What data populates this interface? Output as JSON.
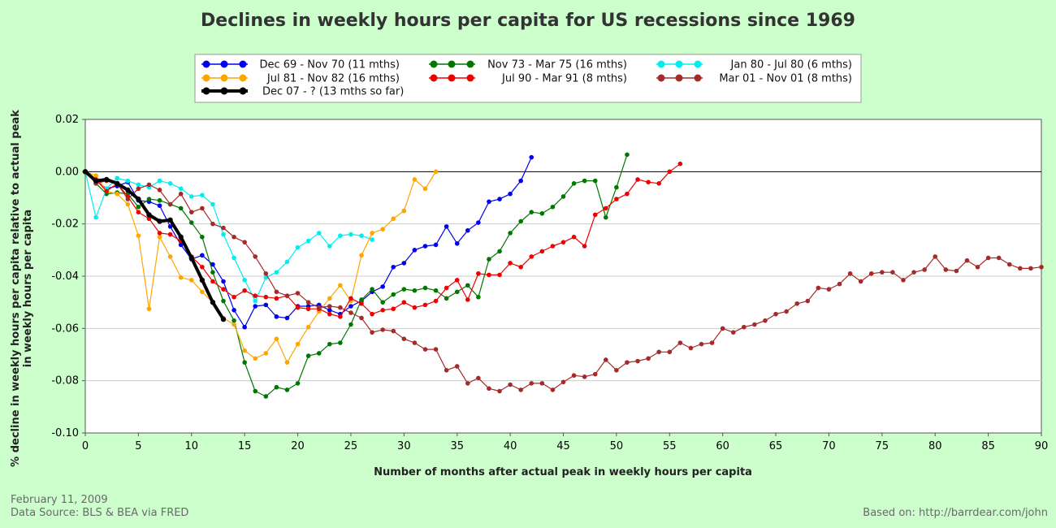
{
  "chart_data": {
    "type": "line",
    "title": "Declines in weekly hours per capita for US recessions since 1969",
    "xlabel": "Number of months after actual peak in weekly hours per capita",
    "ylabel": [
      "% decline in weekly hours per capita relative to actual peak",
      "in weekly hours per capita"
    ],
    "xlim": [
      0,
      90
    ],
    "ylim": [
      -0.1,
      0.02
    ],
    "x_ticks": [
      0,
      5,
      10,
      15,
      20,
      25,
      30,
      35,
      40,
      45,
      50,
      55,
      60,
      65,
      70,
      75,
      80,
      85,
      90
    ],
    "y_ticks": [
      -0.1,
      -0.08,
      -0.06,
      -0.04,
      -0.02,
      0.0,
      0.02
    ],
    "y_tick_labels": [
      "-0.10",
      "-0.08",
      "-0.06",
      "-0.04",
      "-0.02",
      "0.00",
      "0.02"
    ],
    "grid": "horizontal",
    "legend_position": "top",
    "series": [
      {
        "name": "Dec 69 - Nov 70 (11 mths)",
        "color": "#0000ee",
        "bold": false,
        "values": [
          0,
          -0.0035,
          -0.0065,
          -0.0055,
          -0.004,
          -0.011,
          -0.0115,
          -0.013,
          -0.021,
          -0.028,
          -0.0335,
          -0.032,
          -0.0355,
          -0.042,
          -0.053,
          -0.0595,
          -0.0515,
          -0.051,
          -0.0555,
          -0.056,
          -0.0515,
          -0.0515,
          -0.051,
          -0.053,
          -0.0545,
          -0.0515,
          -0.0495,
          -0.046,
          -0.044,
          -0.0365,
          -0.035,
          -0.03,
          -0.0285,
          -0.028,
          -0.021,
          -0.0275,
          -0.0225,
          -0.0195,
          -0.0115,
          -0.0105,
          -0.0085,
          -0.0035,
          0.0055
        ]
      },
      {
        "name": "Nov 73 - Mar 75 (16 mths)",
        "color": "#007700",
        "bold": false,
        "values": [
          0,
          -0.0045,
          -0.0085,
          -0.008,
          -0.0085,
          -0.0135,
          -0.0105,
          -0.011,
          -0.0125,
          -0.014,
          -0.0195,
          -0.025,
          -0.0385,
          -0.0495,
          -0.057,
          -0.073,
          -0.084,
          -0.086,
          -0.0825,
          -0.0835,
          -0.081,
          -0.0705,
          -0.0695,
          -0.066,
          -0.0655,
          -0.0585,
          -0.049,
          -0.045,
          -0.05,
          -0.047,
          -0.045,
          -0.0455,
          -0.0445,
          -0.0455,
          -0.0485,
          -0.046,
          -0.0435,
          -0.048,
          -0.0335,
          -0.0305,
          -0.0235,
          -0.019,
          -0.0155,
          -0.016,
          -0.0135,
          -0.0095,
          -0.0045,
          -0.0035,
          -0.0035,
          -0.0175,
          -0.006,
          0.0065
        ]
      },
      {
        "name": "Jan 80 - Jul 80 (6 mths)",
        "color": "#00eeee",
        "bold": false,
        "values": [
          0,
          -0.0175,
          -0.0065,
          -0.0025,
          -0.0035,
          -0.005,
          -0.006,
          -0.0035,
          -0.0045,
          -0.0065,
          -0.0095,
          -0.009,
          -0.0125,
          -0.024,
          -0.033,
          -0.0415,
          -0.0495,
          -0.0405,
          -0.0385,
          -0.0345,
          -0.029,
          -0.0265,
          -0.0235,
          -0.0285,
          -0.0245,
          -0.024,
          -0.0245,
          -0.026
        ]
      },
      {
        "name": "Jul 81 - Nov 82 (16 mths)",
        "color": "#ffa500",
        "bold": false,
        "values": [
          0,
          -0.0015,
          -0.0075,
          -0.0085,
          -0.0125,
          -0.0245,
          -0.0525,
          -0.025,
          -0.0325,
          -0.0405,
          -0.0415,
          -0.046,
          -0.05,
          -0.056,
          -0.0585,
          -0.0685,
          -0.0715,
          -0.0695,
          -0.064,
          -0.073,
          -0.066,
          -0.0595,
          -0.0535,
          -0.0485,
          -0.0435,
          -0.0495,
          -0.032,
          -0.0235,
          -0.022,
          -0.018,
          -0.015,
          -0.003,
          -0.0065,
          0.0
        ]
      },
      {
        "name": "Jul 90 - Mar 91 (8 mths)",
        "color": "#ee0000",
        "bold": false,
        "values": [
          0,
          -0.003,
          -0.0075,
          -0.0045,
          -0.0095,
          -0.0155,
          -0.018,
          -0.0235,
          -0.024,
          -0.0265,
          -0.0325,
          -0.0365,
          -0.042,
          -0.045,
          -0.048,
          -0.0455,
          -0.0475,
          -0.048,
          -0.0485,
          -0.0475,
          -0.052,
          -0.0525,
          -0.0525,
          -0.0545,
          -0.0555,
          -0.0485,
          -0.0505,
          -0.0545,
          -0.053,
          -0.0525,
          -0.05,
          -0.052,
          -0.051,
          -0.0495,
          -0.0445,
          -0.0415,
          -0.049,
          -0.039,
          -0.0395,
          -0.0395,
          -0.035,
          -0.0365,
          -0.0325,
          -0.0305,
          -0.0285,
          -0.027,
          -0.025,
          -0.0285,
          -0.0165,
          -0.014,
          -0.0105,
          -0.0085,
          -0.003,
          -0.004,
          -0.0045,
          0.0,
          0.003
        ]
      },
      {
        "name": "Mar 01 - Nov 01 (8 mths)",
        "color": "#a52a2a",
        "bold": false,
        "values": [
          0,
          -0.0045,
          -0.0035,
          -0.0045,
          -0.0105,
          -0.0065,
          -0.005,
          -0.007,
          -0.0125,
          -0.0085,
          -0.0155,
          -0.014,
          -0.02,
          -0.0215,
          -0.025,
          -0.027,
          -0.0325,
          -0.039,
          -0.046,
          -0.0475,
          -0.0465,
          -0.05,
          -0.052,
          -0.0515,
          -0.052,
          -0.054,
          -0.056,
          -0.0615,
          -0.0605,
          -0.061,
          -0.064,
          -0.0655,
          -0.068,
          -0.068,
          -0.076,
          -0.0745,
          -0.081,
          -0.079,
          -0.083,
          -0.084,
          -0.0815,
          -0.0835,
          -0.081,
          -0.081,
          -0.0835,
          -0.0805,
          -0.078,
          -0.0785,
          -0.0775,
          -0.072,
          -0.076,
          -0.073,
          -0.0725,
          -0.0715,
          -0.069,
          -0.069,
          -0.0655,
          -0.0675,
          -0.066,
          -0.0655,
          -0.06,
          -0.0615,
          -0.0595,
          -0.0585,
          -0.057,
          -0.0545,
          -0.0535,
          -0.0505,
          -0.0495,
          -0.0445,
          -0.045,
          -0.043,
          -0.039,
          -0.042,
          -0.039,
          -0.0385,
          -0.0385,
          -0.0415,
          -0.0385,
          -0.0375,
          -0.0325,
          -0.0375,
          -0.038,
          -0.034,
          -0.0365,
          -0.033,
          -0.033,
          -0.0355,
          -0.037,
          -0.037,
          -0.0365
        ]
      },
      {
        "name": "Dec 07 - ? (13 mths so far)",
        "color": "#000000",
        "bold": true,
        "values": [
          0,
          -0.0035,
          -0.003,
          -0.0045,
          -0.007,
          -0.0105,
          -0.0165,
          -0.019,
          -0.0185,
          -0.025,
          -0.033,
          -0.0415,
          -0.05,
          -0.0565
        ]
      }
    ]
  },
  "legend_layout": [
    [
      0,
      1,
      2
    ],
    [
      3,
      4,
      5
    ],
    [
      6
    ]
  ],
  "footer": {
    "date": "February 11, 2009",
    "source": "Data Source: BLS & BEA via FRED",
    "based_on": "Based on: http://barrdear.com/john"
  }
}
